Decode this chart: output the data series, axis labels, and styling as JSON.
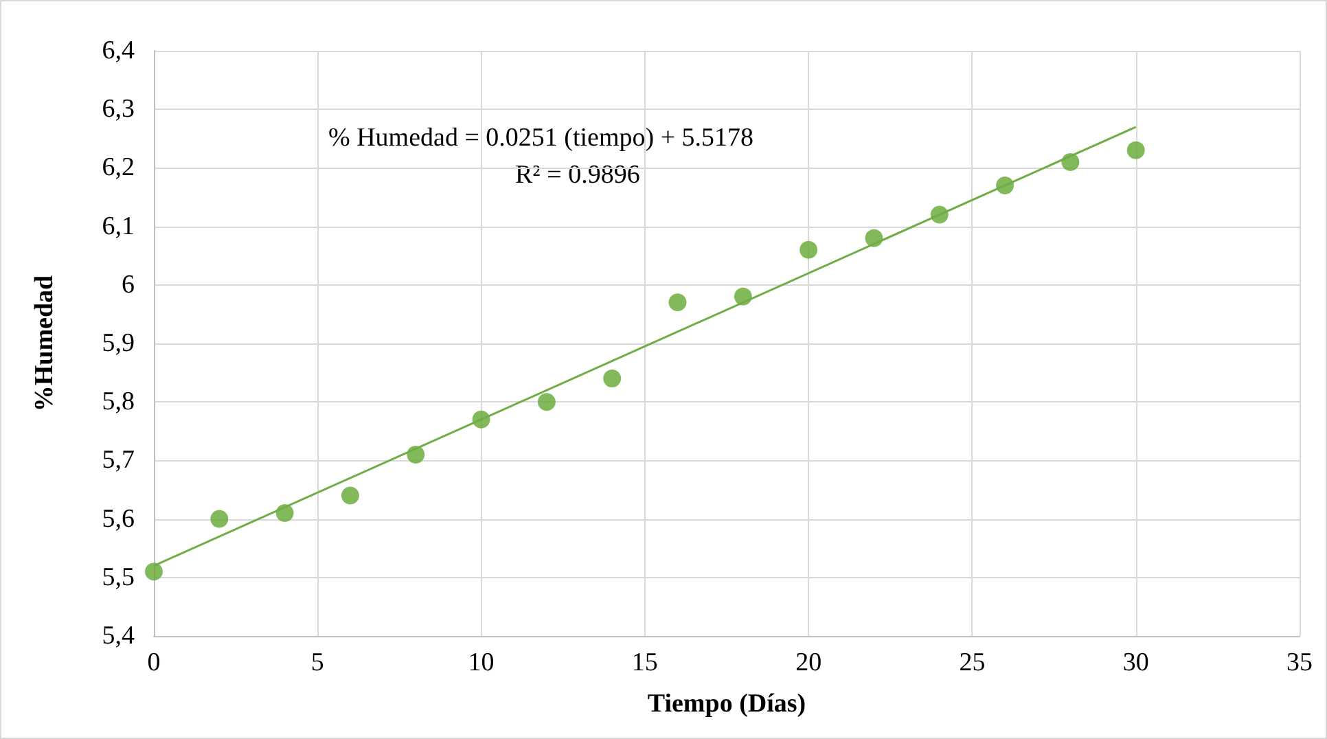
{
  "chart_data": {
    "type": "scatter",
    "xlabel": "Tiempo (Días)",
    "ylabel": "%Humedad",
    "annotations": [
      "% Humedad = 0.0251 (tiempo) + 5.5178",
      "R² = 0.9896"
    ],
    "series": [
      {
        "color": "#63a832",
        "x": [
          0,
          2,
          4,
          6,
          8,
          10,
          12,
          14,
          16,
          18,
          20,
          22,
          24,
          26,
          28,
          30
        ],
        "values": [
          5.51,
          5.6,
          5.61,
          5.64,
          5.71,
          5.77,
          5.8,
          5.84,
          5.97,
          5.98,
          6.06,
          6.08,
          6.12,
          6.17,
          6.21,
          6.23
        ]
      },
      {
        "type": "line",
        "marker": "none",
        "color": "#70ad47",
        "x": [
          0,
          30
        ],
        "values": [
          5.52,
          6.27
        ]
      }
    ],
    "xlim": [
      0,
      35
    ],
    "xticks": [
      0,
      5,
      10,
      15,
      20,
      25,
      30,
      35
    ],
    "ylim": [
      5.4,
      6.4
    ],
    "yticks": [
      {
        "value": 5.4,
        "label": "5,4"
      },
      {
        "value": 5.5,
        "label": "5,5"
      },
      {
        "value": 5.6,
        "label": "5,6"
      },
      {
        "value": 5.7,
        "label": "5,7"
      },
      {
        "value": 5.8,
        "label": "5,8"
      },
      {
        "value": 5.9,
        "label": "5,9"
      },
      6,
      {
        "value": 6.1,
        "label": "6,1"
      },
      {
        "value": 6.2,
        "label": "6,2"
      },
      {
        "value": 6.3,
        "label": "6,3"
      },
      {
        "value": 6.4,
        "label": "6,4"
      }
    ],
    "grid": true,
    "marker": "circle"
  }
}
